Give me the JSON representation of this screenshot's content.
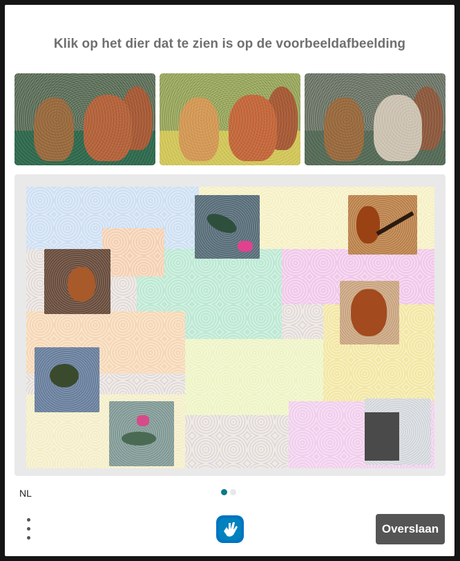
{
  "prompt": {
    "title": "Klik op het dier dat te zien is op de voorbeeldafbeelding"
  },
  "example_images": [
    {
      "icon": "cat-and-squirrel-forest-image"
    },
    {
      "icon": "cat-and-squirrel-park-image"
    },
    {
      "icon": "cat-and-squirrel-garden-image"
    }
  ],
  "puzzle": {
    "tiles": [
      {
        "name": "hummingbird-tile",
        "icon": "hummingbird-image"
      },
      {
        "name": "violin-tile",
        "icon": "violin-image"
      },
      {
        "name": "squirrel-tile",
        "icon": "squirrel-image"
      },
      {
        "name": "violin-tile",
        "icon": "violin-image"
      },
      {
        "name": "bird-tile",
        "icon": "bird-image"
      },
      {
        "name": "hummingbird-tile",
        "icon": "hummingbird-image"
      },
      {
        "name": "window-tile",
        "icon": "window-image"
      }
    ]
  },
  "footer": {
    "language": "NL",
    "page_indicator": {
      "current": 1,
      "total": 2
    },
    "menu_icon": "more-vertical-icon",
    "logo_icon": "hcaptcha-hand-logo",
    "skip_label": "Overslaan"
  },
  "colors": {
    "accent": "#0b7a8a",
    "button_bg": "#555555",
    "title_text": "#6f6f6f"
  }
}
